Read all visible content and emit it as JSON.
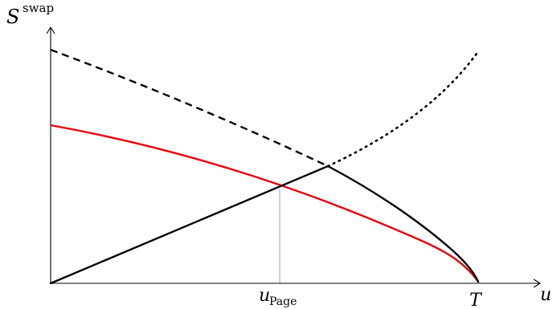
{
  "axes": {
    "y_label_main": "S",
    "y_label_sup": "swap",
    "x_label": "u"
  },
  "ticks": {
    "u_page_main": "u",
    "u_page_sub": "Page",
    "t_label": "T"
  }
}
